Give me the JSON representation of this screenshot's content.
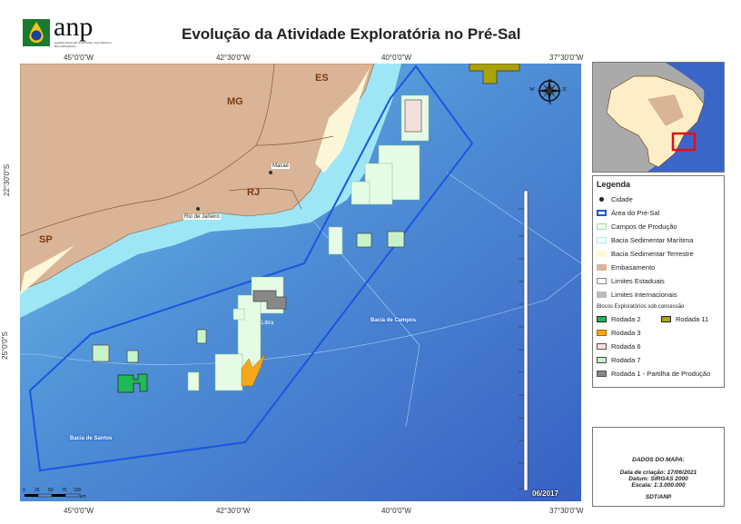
{
  "header": {
    "title": "Evolução da Atividade Exploratória no Pré-Sal",
    "logo_text": "anp",
    "logo_subtitle": "Agência Nacional do Petróleo, Gás Natural e Biocombustíveis"
  },
  "map": {
    "lon_labels": [
      "45°0'0\"W",
      "42°30'0\"W",
      "40°0'0\"W",
      "37°30'0\"W"
    ],
    "lat_labels": [
      "22°30'0\"S",
      "25°0'0\"S"
    ],
    "states": [
      "MG",
      "ES",
      "RJ",
      "SP"
    ],
    "cities": [
      "Macaé",
      "Rio de Janeiro"
    ],
    "basins": [
      "Bacia de Campos",
      "Bacia de Santos"
    ],
    "block_labels": [
      "Libra"
    ],
    "date_stamp": "06/2017",
    "scale": {
      "ticks": [
        "0",
        "25",
        "50",
        "75",
        "100"
      ],
      "unit": "km"
    },
    "compass": {
      "n": "N",
      "s": "S",
      "e": "E",
      "w": "W"
    },
    "colors": {
      "land": "#d9b496",
      "pre_sal": "#1a56e0",
      "ocean_deep": "#3f6fcf",
      "ocean_shelf": "#7fd6ee",
      "fields": "#e6fbe6",
      "rodada2": "#1fb955",
      "rodada3": "#f5a81a",
      "rodada6": "#f7dede",
      "rodada7": "#c8f2c8",
      "rodada11": "#a9a20a",
      "partilha": "#888888"
    }
  },
  "legend": {
    "title": "Legenda",
    "items": [
      {
        "label": "Cidade"
      },
      {
        "label": "Área do Pré-Sal"
      },
      {
        "label": "Campos de Produção"
      },
      {
        "label": "Bacia Sedimentar Marítima"
      },
      {
        "label": "Bacia Sedimentar Terrestre"
      },
      {
        "label": "Embasamento"
      },
      {
        "label": "Limites Estaduais"
      },
      {
        "label": "Limites Internacionais"
      }
    ],
    "blocks_title": "Blocos Exploratórios sob concessão",
    "blocks": [
      {
        "label": "Rodada 2"
      },
      {
        "label": "Rodada 11"
      },
      {
        "label": "Rodada 3"
      },
      {
        "label": "Rodada 6"
      },
      {
        "label": "Rodada 7"
      },
      {
        "label": "Rodada 1 - Partilha de Produção"
      }
    ]
  },
  "map_info": {
    "title": "DADOS DO MAPA:",
    "created": "Data de criação: 17/06/2021",
    "datum": "Datum: SIRGAS 2000",
    "scale": "Escala: 1:3.000.000",
    "author": "SDT/ANP"
  }
}
